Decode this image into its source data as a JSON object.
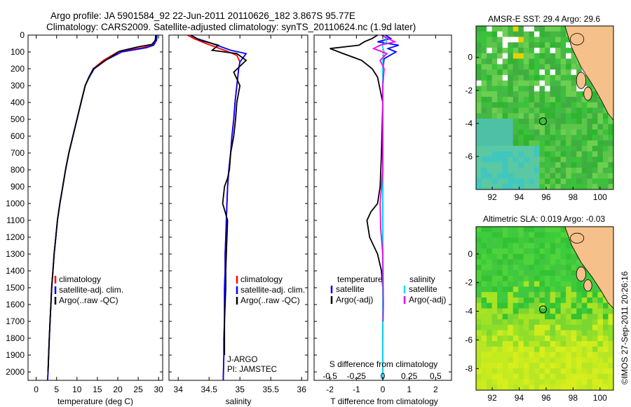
{
  "figure": {
    "title_line1": "Argo profile: JA 5901584_92 22-Jun-2011 20110626_182 3.867S 95.77E",
    "title_line2": "Climatology: CARS2009. Satellite-adjusted climatology: synTS_20110624.nc (1.9d later)",
    "credit": "©IMOS 27-Sep-2011 20:26:16",
    "colors": {
      "climatology": "#ff0000",
      "satellite": "#0000ff",
      "argo": "#000000",
      "salinity_satellite": "#00e5ee",
      "salinity_argo": "#ee00ee"
    }
  },
  "chart_data": [
    {
      "id": "temperature",
      "type": "line",
      "xlabel": "temperature (deg C)",
      "ylabel": "",
      "xlim": [
        -2,
        31
      ],
      "ylim": [
        2050,
        0
      ],
      "xticks": [
        0,
        5,
        10,
        15,
        20,
        25,
        30
      ],
      "yticks": [
        0,
        100,
        200,
        300,
        400,
        500,
        600,
        700,
        800,
        900,
        1000,
        1100,
        1200,
        1300,
        1400,
        1500,
        1600,
        1700,
        1800,
        1900,
        2000
      ],
      "legend": [
        "climatology",
        "satellite-adj. clim.",
        "Argo(..raw -QC)"
      ],
      "legend_placement": "lower-center",
      "series": [
        {
          "name": "climatology",
          "color": "#ff0000",
          "x": [
            29.5,
            29.4,
            28.5,
            26,
            20,
            16.5,
            14,
            13,
            12,
            11,
            10,
            9,
            8,
            7.2,
            6.5,
            5.8,
            5.2,
            4.8,
            4.4,
            4.1,
            3.8,
            3.6,
            3.4,
            3.2,
            3.05,
            2.9,
            2.8
          ],
          "y": [
            0,
            30,
            60,
            75,
            100,
            150,
            200,
            250,
            300,
            400,
            500,
            600,
            700,
            800,
            900,
            1000,
            1100,
            1200,
            1300,
            1400,
            1500,
            1600,
            1700,
            1800,
            1900,
            2000,
            2050
          ]
        },
        {
          "name": "satellite-adj. clim.",
          "color": "#0000ff",
          "x": [
            29.6,
            29.5,
            28.8,
            27,
            21,
            17,
            14.2,
            13,
            12,
            11,
            10,
            9,
            8,
            7.2,
            6.5,
            5.8,
            5.2,
            4.8,
            4.4,
            4.1,
            3.8,
            3.6,
            3.4,
            3.2,
            3.05,
            2.9,
            2.8
          ],
          "y": [
            0,
            30,
            60,
            75,
            100,
            150,
            200,
            250,
            300,
            400,
            500,
            600,
            700,
            800,
            900,
            1000,
            1100,
            1200,
            1300,
            1400,
            1500,
            1600,
            1700,
            1800,
            1900,
            2000,
            2050
          ]
        },
        {
          "name": "Argo(..raw -QC)",
          "color": "#000000",
          "x": [
            29.3,
            29.2,
            28.4,
            25,
            20.5,
            17,
            14,
            12.9,
            12,
            11,
            10,
            9,
            8,
            7.2,
            6.5,
            5.8,
            5.2,
            4.8,
            4.4,
            4.1,
            3.8,
            3.6,
            3.4,
            3.2,
            3.05,
            2.9
          ],
          "y": [
            0,
            30,
            55,
            70,
            95,
            150,
            200,
            250,
            300,
            400,
            500,
            600,
            700,
            800,
            900,
            1000,
            1100,
            1200,
            1300,
            1400,
            1500,
            1600,
            1700,
            1800,
            1900,
            2000
          ]
        }
      ]
    },
    {
      "id": "salinity",
      "type": "line",
      "xlabel": "salinity",
      "ylabel": "",
      "xlim": [
        33.85,
        36.1
      ],
      "ylim": [
        2050,
        0
      ],
      "xticks": [
        34,
        34.5,
        35,
        35.5,
        36
      ],
      "legend": [
        "climatology",
        "satellite-adj. clim.",
        "Argo(..raw -QC)"
      ],
      "legend_placement": "lower-right",
      "annotations": [
        "J-ARGO",
        "PI: JAMSTEC"
      ],
      "series": [
        {
          "name": "climatology",
          "color": "#ff0000",
          "x": [
            34.15,
            34.25,
            34.45,
            34.75,
            34.95,
            35.0,
            34.98,
            34.95,
            34.92,
            34.9,
            34.87,
            34.85,
            34.82,
            34.8,
            34.79,
            34.78,
            34.77,
            34.76,
            34.76,
            34.75,
            34.75,
            34.75,
            34.74,
            34.74,
            34.73
          ],
          "y": [
            0,
            20,
            50,
            90,
            120,
            160,
            200,
            300,
            400,
            500,
            600,
            700,
            800,
            900,
            1000,
            1100,
            1200,
            1300,
            1400,
            1500,
            1600,
            1700,
            1800,
            1900,
            2050
          ]
        },
        {
          "name": "satellite-adj. clim.",
          "color": "#0000ff",
          "x": [
            34.2,
            34.3,
            34.55,
            34.85,
            35.1,
            35.0,
            34.98,
            34.95,
            34.92,
            34.9,
            34.87,
            34.85,
            34.82,
            34.8,
            34.79,
            34.78,
            34.77,
            34.76,
            34.76,
            34.75,
            34.75,
            34.75,
            34.74,
            34.74,
            34.73
          ],
          "y": [
            0,
            20,
            50,
            90,
            110,
            160,
            200,
            300,
            400,
            500,
            600,
            700,
            800,
            900,
            1000,
            1100,
            1200,
            1300,
            1400,
            1500,
            1600,
            1700,
            1800,
            1900,
            2050
          ]
        },
        {
          "name": "Argo(..raw -QC)",
          "color": "#000000",
          "x": [
            34.2,
            34.35,
            34.65,
            34.55,
            34.95,
            35.1,
            34.9,
            35.0,
            34.95,
            34.93,
            34.9,
            34.85,
            34.83,
            34.8,
            34.75,
            34.72,
            34.8,
            34.79,
            34.78,
            34.77,
            34.77,
            34.76,
            34.75,
            34.75
          ],
          "y": [
            0,
            30,
            60,
            90,
            110,
            150,
            220,
            300,
            400,
            500,
            600,
            700,
            800,
            850,
            900,
            1000,
            1100,
            1200,
            1300,
            1400,
            1500,
            1600,
            1700,
            1900
          ]
        }
      ]
    },
    {
      "id": "differences",
      "type": "line",
      "xlabel": "T difference from climatology",
      "xlabel_top": "S difference from climatology",
      "xlim": [
        -2.6,
        2.6
      ],
      "ylim": [
        2050,
        0
      ],
      "xticks": [
        -2,
        -1,
        0,
        1,
        2
      ],
      "xticks_salinity": [
        "-0.5",
        "-0.25",
        "0",
        "0.25",
        "0.5"
      ],
      "legend_titles": [
        "temperature",
        "salinity"
      ],
      "legend": [
        "satellite",
        "Argo(-adj)",
        "satellite",
        "Argo(-adj)"
      ],
      "legend_placement": "lower-center",
      "series": [
        {
          "name": "satellite",
          "group": "temperature",
          "color": "#0000ff",
          "x": [
            0.1,
            0.3,
            -0.2,
            0.6,
            0.2,
            0.5,
            0.05,
            0,
            0,
            0,
            0,
            0,
            0,
            0,
            0,
            0,
            0,
            0,
            0,
            0,
            0
          ],
          "y": [
            0,
            20,
            40,
            60,
            80,
            100,
            140,
            200,
            300,
            400,
            600,
            800,
            1000,
            1200,
            1400,
            1600,
            1800,
            2000,
            2050,
            2050,
            2050
          ]
        },
        {
          "name": "Argo(-adj)",
          "group": "temperature",
          "color": "#000000",
          "x": [
            -0.2,
            -0.4,
            -0.7,
            -0.9,
            -2.0,
            -1.5,
            -0.8,
            -0.4,
            -0.2,
            0,
            -0.05,
            -0.1,
            -0.2,
            -0.45,
            -0.6,
            -0.5,
            -0.2,
            -0.05,
            0,
            0
          ],
          "y": [
            0,
            20,
            40,
            60,
            80,
            110,
            150,
            200,
            250,
            400,
            700,
            900,
            1000,
            1050,
            1100,
            1200,
            1300,
            1400,
            1500,
            1800
          ]
        },
        {
          "name": "satellite",
          "group": "salinity",
          "color": "#00e5ee",
          "x": [
            0.02,
            0.1,
            0.15,
            -0.02,
            0.05,
            0,
            0,
            0,
            0,
            0,
            0,
            0,
            0,
            0,
            0,
            0,
            0
          ],
          "y": [
            0,
            20,
            40,
            60,
            100,
            150,
            300,
            500,
            700,
            900,
            1100,
            1300,
            1500,
            1700,
            1900,
            2000,
            2050
          ]
        },
        {
          "name": "Argo(-adj)",
          "group": "salinity",
          "color": "#ee00ee",
          "x": [
            -0.05,
            0.2,
            0.45,
            -0.1,
            -0.35,
            0.15,
            -0.1,
            0.05,
            0,
            0,
            -0.05,
            -0.1,
            -0.08,
            0,
            0.01,
            0.02,
            0.01
          ],
          "y": [
            0,
            20,
            40,
            60,
            80,
            110,
            150,
            200,
            300,
            800,
            900,
            1000,
            1150,
            1300,
            1450,
            1600,
            1700
          ]
        }
      ]
    },
    {
      "id": "sst-map",
      "type": "heatmap",
      "title": "AMSR-E SST: 29.4 Argo: 29.6",
      "xlim": [
        90.8,
        101
      ],
      "ylim": [
        -8,
        1.9
      ],
      "xticks": [
        92,
        94,
        96,
        98,
        100
      ],
      "yticks": [
        0,
        -2,
        -4,
        -6
      ],
      "marker": {
        "lon": 95.77,
        "lat": -3.867
      }
    },
    {
      "id": "sla-map",
      "type": "heatmap",
      "title": "Altimetric SLA: 0.019 Argo: -0.03",
      "xlim": [
        90.8,
        101
      ],
      "ylim": [
        -9.5,
        1.9
      ],
      "xticks": [
        92,
        94,
        96,
        98,
        100
      ],
      "yticks": [
        0,
        -2,
        -4,
        -6,
        -8
      ],
      "marker": {
        "lon": 95.77,
        "lat": -3.867
      }
    }
  ]
}
